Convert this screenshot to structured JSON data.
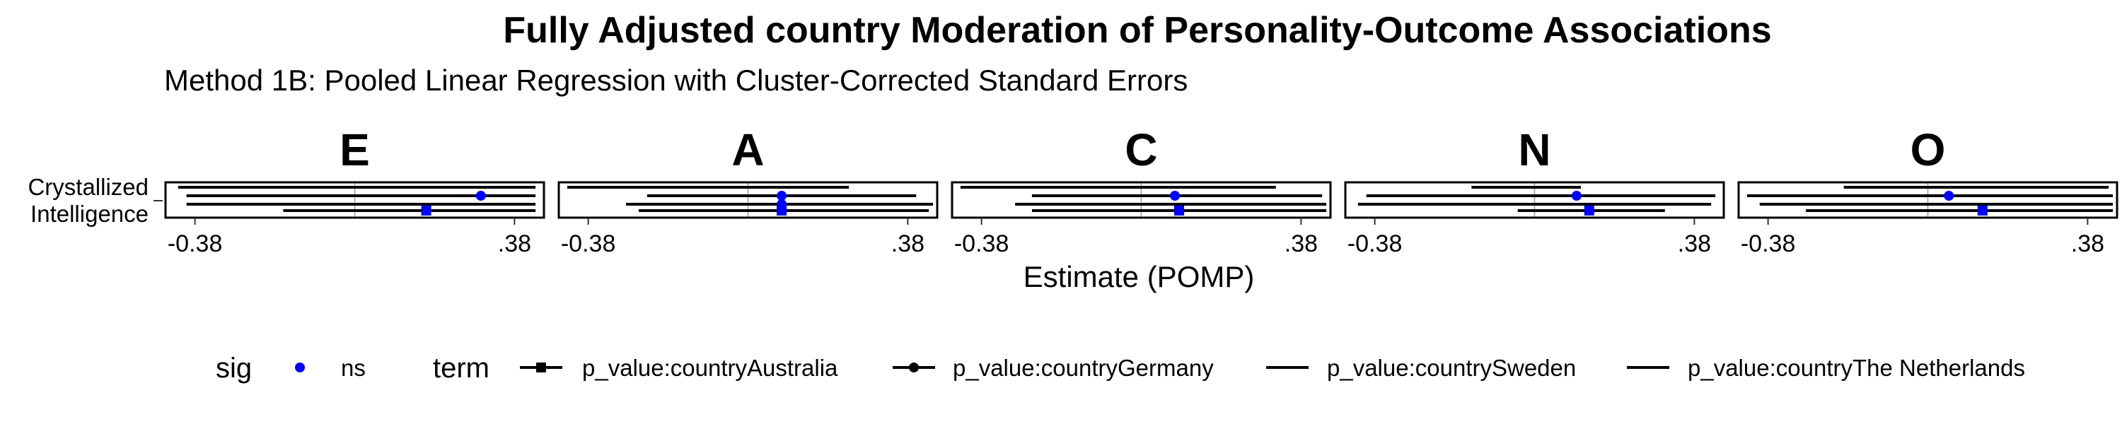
{
  "chart_data": {
    "type": "forest",
    "title": "Fully Adjusted country Moderation of Personality-Outcome Associations",
    "subtitle": "Method 1B: Pooled Linear Regression with Cluster-Corrected Standard Errors",
    "xlabel": "Estimate (POMP)",
    "ylabel_lines": [
      "Crystallized",
      "Intelligence"
    ],
    "x_ticks": [
      -0.38,
      0.38
    ],
    "x_tick_labels": [
      "-0.38",
      ".38"
    ],
    "xlim": [
      -0.45,
      0.45
    ],
    "reference_line": 0,
    "point_color": "#0000ff",
    "line_color": "#000000",
    "panels": [
      {
        "facet": "E",
        "terms": [
          {
            "term": "p_value:countrySweden",
            "estimate": null,
            "ci_low": -0.42,
            "ci_high": 0.43,
            "sig": null
          },
          {
            "term": "p_value:countryGermany",
            "estimate": 0.3,
            "ci_low": -0.4,
            "ci_high": 0.43,
            "sig": "ns"
          },
          {
            "term": "p_value:countryThe Netherlands",
            "estimate": null,
            "ci_low": -0.4,
            "ci_high": 0.43,
            "sig": null
          },
          {
            "term": "p_value:countryAustralia",
            "estimate": 0.17,
            "ci_low": -0.17,
            "ci_high": 0.43,
            "sig": "ns"
          }
        ]
      },
      {
        "facet": "A",
        "terms": [
          {
            "term": "p_value:countrySweden",
            "estimate": null,
            "ci_low": -0.43,
            "ci_high": 0.24,
            "sig": null
          },
          {
            "term": "p_value:countryGermany",
            "estimate": 0.08,
            "ci_low": -0.24,
            "ci_high": 0.4,
            "sig": "ns"
          },
          {
            "term": "p_value:countryThe Netherlands",
            "estimate": 0.08,
            "ci_low": -0.29,
            "ci_high": 0.44,
            "sig": "ns"
          },
          {
            "term": "p_value:countryAustralia",
            "estimate": 0.08,
            "ci_low": -0.26,
            "ci_high": 0.43,
            "sig": "ns"
          }
        ]
      },
      {
        "facet": "C",
        "terms": [
          {
            "term": "p_value:countrySweden",
            "estimate": null,
            "ci_low": -0.43,
            "ci_high": 0.32,
            "sig": null
          },
          {
            "term": "p_value:countryGermany",
            "estimate": 0.08,
            "ci_low": -0.26,
            "ci_high": 0.43,
            "sig": "ns"
          },
          {
            "term": "p_value:countryThe Netherlands",
            "estimate": null,
            "ci_low": -0.3,
            "ci_high": 0.44,
            "sig": null
          },
          {
            "term": "p_value:countryAustralia",
            "estimate": 0.09,
            "ci_low": -0.26,
            "ci_high": 0.44,
            "sig": "ns"
          }
        ]
      },
      {
        "facet": "N",
        "terms": [
          {
            "term": "p_value:countrySweden",
            "estimate": null,
            "ci_low": -0.15,
            "ci_high": 0.11,
            "sig": null
          },
          {
            "term": "p_value:countryGermany",
            "estimate": 0.1,
            "ci_low": -0.4,
            "ci_high": 0.43,
            "sig": "ns"
          },
          {
            "term": "p_value:countryThe Netherlands",
            "estimate": null,
            "ci_low": -0.42,
            "ci_high": 0.42,
            "sig": null
          },
          {
            "term": "p_value:countryAustralia",
            "estimate": 0.13,
            "ci_low": -0.04,
            "ci_high": 0.31,
            "sig": "ns"
          }
        ]
      },
      {
        "facet": "O",
        "terms": [
          {
            "term": "p_value:countrySweden",
            "estimate": null,
            "ci_low": -0.2,
            "ci_high": 0.43,
            "sig": null
          },
          {
            "term": "p_value:countryGermany",
            "estimate": 0.05,
            "ci_low": -0.43,
            "ci_high": 0.44,
            "sig": "ns"
          },
          {
            "term": "p_value:countryThe Netherlands",
            "estimate": null,
            "ci_low": -0.4,
            "ci_high": 0.44,
            "sig": null
          },
          {
            "term": "p_value:countryAustralia",
            "estimate": 0.13,
            "ci_low": -0.29,
            "ci_high": 0.44,
            "sig": "ns"
          }
        ]
      }
    ],
    "legend": {
      "position": "bottom",
      "sig_title": "sig",
      "sig_items": [
        {
          "label": "ns",
          "color": "#0000ff"
        }
      ],
      "term_title": "term",
      "term_items": [
        {
          "label": "p_value:countryAustralia",
          "shape": "square"
        },
        {
          "label": "p_value:countryGermany",
          "shape": "circle"
        },
        {
          "label": "p_value:countrySweden",
          "shape": "none"
        },
        {
          "label": "p_value:countryThe Netherlands",
          "shape": "none"
        }
      ]
    }
  }
}
